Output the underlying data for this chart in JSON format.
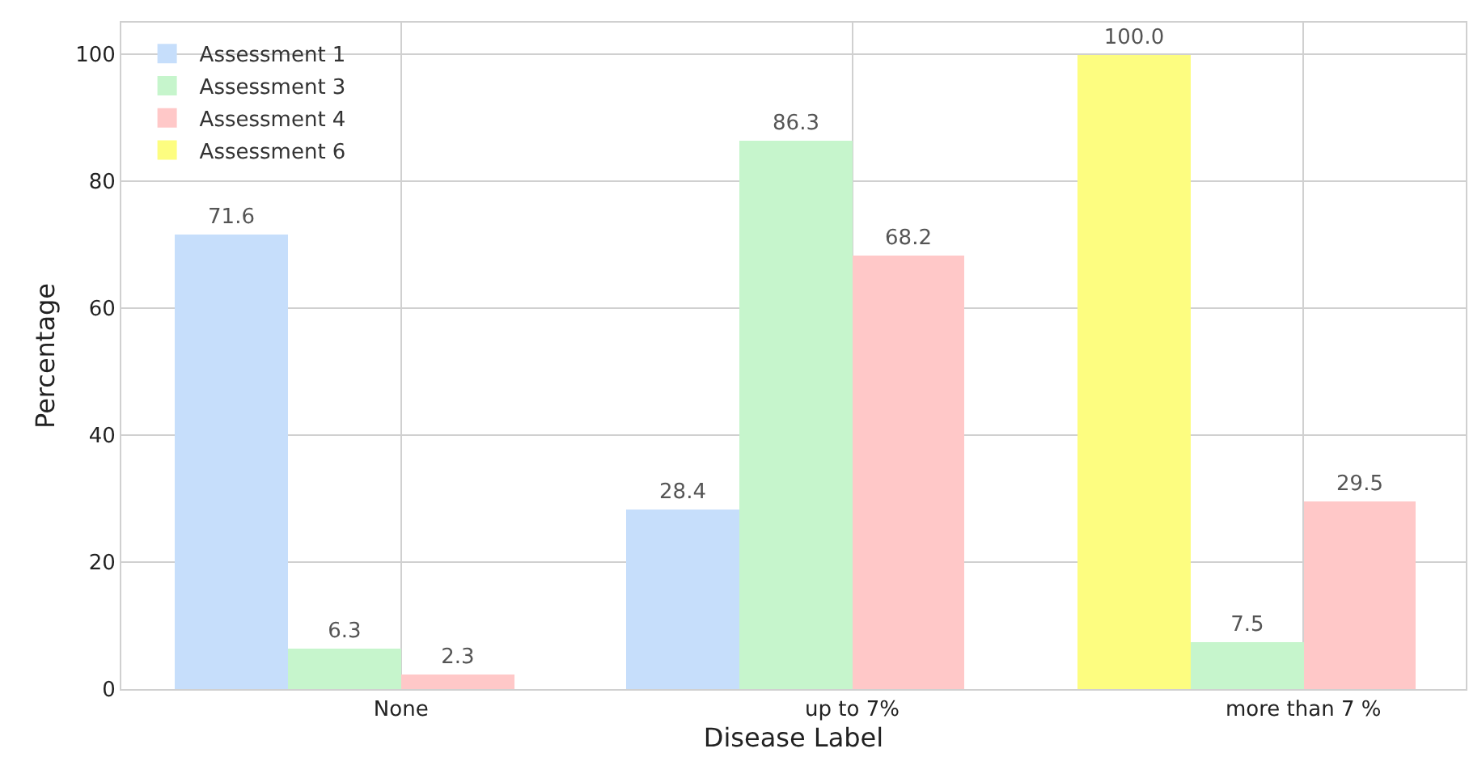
{
  "chart_data": {
    "type": "bar",
    "xlabel": "Disease Label",
    "ylabel": "Percentage",
    "categories": [
      "None",
      "up to 7%",
      "more than 7 %"
    ],
    "series": [
      {
        "name": "Assessment 1",
        "color": "#c6defb",
        "values": [
          71.6,
          28.4,
          null
        ],
        "value_labels": [
          "71.6",
          "28.4",
          null
        ]
      },
      {
        "name": "Assessment 3",
        "color": "#c6f5cc",
        "values": [
          6.3,
          86.3,
          7.5
        ],
        "value_labels": [
          "6.3",
          "86.3",
          "7.5"
        ]
      },
      {
        "name": "Assessment 4",
        "color": "#ffc8c8",
        "values": [
          2.3,
          68.2,
          29.5
        ],
        "value_labels": [
          "2.3",
          "68.2",
          "29.5"
        ]
      },
      {
        "name": "Assessment 6",
        "color": "#fdfd80",
        "values": [
          null,
          null,
          100
        ],
        "value_labels": [
          null,
          null,
          "100.0"
        ]
      }
    ],
    "ylim": [
      0,
      105
    ],
    "yticks": [
      0,
      20,
      40,
      60,
      80,
      100
    ],
    "grid": true,
    "legend": "top left"
  }
}
